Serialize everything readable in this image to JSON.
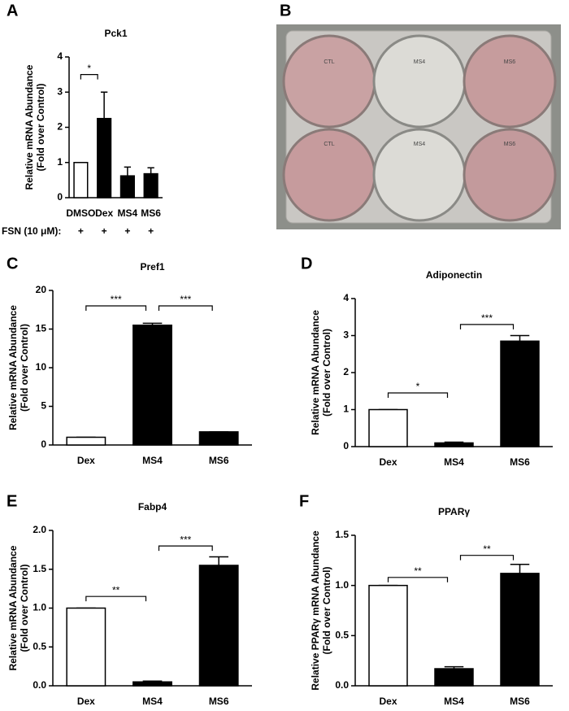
{
  "chart_data": [
    {
      "type": "bar",
      "panel": "A",
      "title": "Pck1",
      "ylabel": [
        "Relative mRNA Abundance",
        "(Fold over Control)"
      ],
      "categories": [
        "DMSO",
        "Dex",
        "MS4",
        "MS6"
      ],
      "values": [
        1,
        2.25,
        0.62,
        0.68
      ],
      "errors": [
        0,
        0.75,
        0.25,
        0.17
      ],
      "colors": [
        "#ffffff",
        "#000000",
        "#000000",
        "#000000"
      ],
      "ylim": [
        0,
        4
      ],
      "yticks": [
        0,
        1,
        2,
        3,
        4
      ],
      "annotations": [
        {
          "from": 0,
          "to": 1,
          "y": 3.5,
          "text": "*"
        }
      ],
      "row_label": "FSN (10 μM):",
      "row_values": [
        "+",
        "+",
        "+",
        "+"
      ]
    },
    {
      "type": "bar",
      "panel": "C",
      "title": "Pref1",
      "ylabel": [
        "Relative mRNA Abundance",
        "(Fold over Control)"
      ],
      "categories": [
        "Dex",
        "MS4",
        "MS6"
      ],
      "values": [
        1,
        15.5,
        1.7
      ],
      "errors": [
        0,
        0.25,
        0
      ],
      "colors": [
        "#ffffff",
        "#000000",
        "#000000"
      ],
      "ylim": [
        0,
        20
      ],
      "yticks": [
        0,
        5,
        10,
        15,
        20
      ],
      "annotations": [
        {
          "from": 0,
          "to": 1,
          "y": 18,
          "text": "***"
        },
        {
          "from": 1,
          "to": 2,
          "y": 18,
          "text": "***"
        }
      ]
    },
    {
      "type": "bar",
      "panel": "D",
      "title": "Adiponectin",
      "ylabel": [
        "Relative mRNA Abundance",
        "(Fold over Control)"
      ],
      "categories": [
        "Dex",
        "MS4",
        "MS6"
      ],
      "values": [
        1,
        0.1,
        2.85
      ],
      "errors": [
        0,
        0.02,
        0.15
      ],
      "colors": [
        "#ffffff",
        "#000000",
        "#000000"
      ],
      "ylim": [
        0,
        4
      ],
      "yticks": [
        0,
        1,
        2,
        3,
        4
      ],
      "annotations": [
        {
          "from": 0,
          "to": 1,
          "y": 1.45,
          "text": "*"
        },
        {
          "from": 1,
          "to": 2,
          "y": 3.3,
          "text": "***"
        }
      ]
    },
    {
      "type": "bar",
      "panel": "E",
      "title": "Fabp4",
      "ylabel": [
        "Relative mRNA Abundance",
        "(Fold over Control)"
      ],
      "categories": [
        "Dex",
        "MS4",
        "MS6"
      ],
      "values": [
        1,
        0.05,
        1.55
      ],
      "errors": [
        0,
        0.01,
        0.11
      ],
      "colors": [
        "#ffffff",
        "#000000",
        "#000000"
      ],
      "ylim": [
        0,
        2
      ],
      "yticks": [
        {
          "value": 0,
          "label": "0.0"
        },
        {
          "value": 0.5,
          "label": "0.5"
        },
        {
          "value": 1,
          "label": "1.0"
        },
        {
          "value": 1.5,
          "label": "1.5"
        },
        {
          "value": 2,
          "label": "2.0"
        }
      ],
      "annotations": [
        {
          "from": 0,
          "to": 1,
          "y": 1.15,
          "text": "**"
        },
        {
          "from": 1,
          "to": 2,
          "y": 1.8,
          "text": "***"
        }
      ]
    },
    {
      "type": "bar",
      "panel": "F",
      "title": "PPARγ",
      "ylabel": [
        "Relative PPARγ mRNA Abundance",
        "(Fold over Control)"
      ],
      "categories": [
        "Dex",
        "MS4",
        "MS6"
      ],
      "values": [
        1,
        0.17,
        1.12
      ],
      "errors": [
        0,
        0.02,
        0.09
      ],
      "colors": [
        "#ffffff",
        "#000000",
        "#000000"
      ],
      "ylim": [
        0,
        1.5
      ],
      "yticks": [
        {
          "value": 0,
          "label": "0.0"
        },
        {
          "value": 0.5,
          "label": "0.5"
        },
        {
          "value": 1,
          "label": "1.0"
        },
        {
          "value": 1.5,
          "label": "1.5"
        }
      ],
      "annotations": [
        {
          "from": 0,
          "to": 1,
          "y": 1.08,
          "text": "**"
        },
        {
          "from": 1,
          "to": 2,
          "y": 1.3,
          "text": "**"
        }
      ]
    }
  ],
  "photo": {
    "panel": "B",
    "wells": [
      "CTL",
      "MS4",
      "MS6",
      "CTL",
      "MS4",
      "MS6"
    ]
  }
}
